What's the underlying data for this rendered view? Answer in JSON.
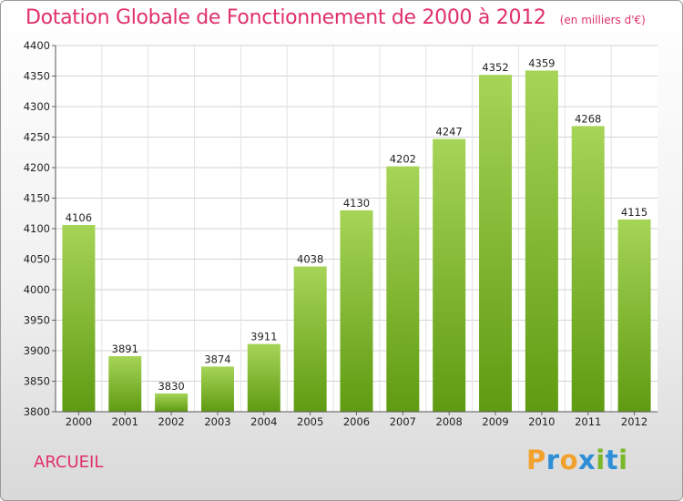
{
  "header": {
    "title": "Dotation Globale de Fonctionnement de 2000 à 2012",
    "unit": "(en milliers d'€)"
  },
  "footer": {
    "city": "ARCUEIL",
    "logo_text": "Proxiti"
  },
  "colors": {
    "bar_top": "#a6d457",
    "bar_bottom": "#5f9b12",
    "title": "#e0306a"
  },
  "chart_data": {
    "type": "bar",
    "title": "Dotation Globale de Fonctionnement de 2000 à 2012",
    "subtitle": "(en milliers d'€)",
    "categories": [
      "2000",
      "2001",
      "2002",
      "2003",
      "2004",
      "2005",
      "2006",
      "2007",
      "2008",
      "2009",
      "2010",
      "2011",
      "2012"
    ],
    "values": [
      4106,
      3891,
      3830,
      3874,
      3911,
      4038,
      4130,
      4202,
      4247,
      4352,
      4359,
      4268,
      4115
    ],
    "ylim": [
      3800,
      4400
    ],
    "yticks": [
      3800,
      3850,
      3900,
      3950,
      4000,
      4050,
      4100,
      4150,
      4200,
      4250,
      4300,
      4350,
      4400
    ],
    "grid": true,
    "legend": "none"
  }
}
